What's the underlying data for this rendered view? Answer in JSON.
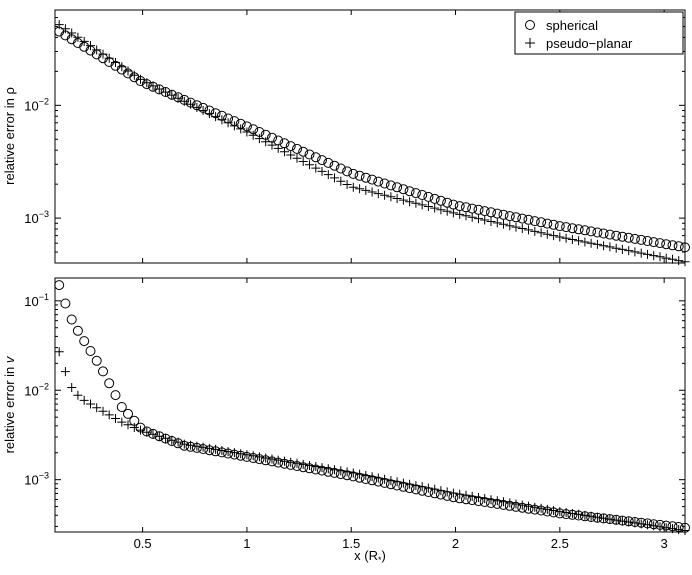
{
  "chart_data": [
    {
      "type": "scatter",
      "ylabel": "relative error in ρ",
      "yscale": "log",
      "xlim": [
        0.08,
        3.1
      ],
      "ylim": [
        0.0004,
        0.07
      ],
      "yticks": [
        {
          "value": 0.01,
          "base": "10",
          "exp": "−2"
        },
        {
          "value": 0.001,
          "base": "10",
          "exp": "−3"
        }
      ],
      "legend": {
        "position": "top-right",
        "entries": [
          "spherical",
          "pseudo−planar"
        ]
      },
      "series": [
        {
          "name": "spherical",
          "marker": "circle",
          "x": [
            0.1,
            0.5,
            1.0,
            1.5,
            2.0,
            2.5,
            3.1
          ],
          "y": [
            0.045,
            0.016,
            0.0065,
            0.0025,
            0.0013,
            0.00085,
            0.00055
          ]
        },
        {
          "name": "pseudo−planar",
          "marker": "plus",
          "x": [
            0.1,
            0.5,
            1.0,
            1.5,
            2.0,
            2.5,
            3.1
          ],
          "y": [
            0.052,
            0.0165,
            0.0058,
            0.0019,
            0.0011,
            0.00068,
            0.00041
          ]
        }
      ]
    },
    {
      "type": "scatter",
      "ylabel": "relative error in",
      "ylabel_symbol": "v",
      "yscale": "log",
      "xlabel": "x (R",
      "xlabel_sub": "*",
      "xlabel_end": ")",
      "xlim": [
        0.08,
        3.1
      ],
      "ylim": [
        0.00026,
        0.18
      ],
      "xticks": [
        {
          "value": 0.5,
          "label": "0.5"
        },
        {
          "value": 1.0,
          "label": "1"
        },
        {
          "value": 1.5,
          "label": "1.5"
        },
        {
          "value": 2.0,
          "label": "2"
        },
        {
          "value": 2.5,
          "label": "2.5"
        },
        {
          "value": 3.0,
          "label": "3"
        }
      ],
      "yticks": [
        {
          "value": 0.1,
          "base": "10",
          "exp": "−1"
        },
        {
          "value": 0.01,
          "base": "10",
          "exp": "−2"
        },
        {
          "value": 0.001,
          "base": "10",
          "exp": "−3"
        }
      ],
      "series": [
        {
          "name": "spherical",
          "marker": "circle",
          "x": [
            0.1,
            0.15,
            0.2,
            0.3,
            0.4,
            0.5,
            0.7,
            1.0,
            1.5,
            2.0,
            2.5,
            3.1
          ],
          "y": [
            0.15,
            0.068,
            0.042,
            0.018,
            0.0065,
            0.0036,
            0.0024,
            0.0018,
            0.0011,
            0.00063,
            0.00042,
            0.00029
          ]
        },
        {
          "name": "pseudo−planar",
          "marker": "plus",
          "x": [
            0.1,
            0.15,
            0.2,
            0.3,
            0.4,
            0.5,
            0.7,
            1.0,
            1.5,
            2.0,
            2.5,
            3.1
          ],
          "y": [
            0.027,
            0.0115,
            0.0082,
            0.006,
            0.0044,
            0.0035,
            0.0025,
            0.0019,
            0.0012,
            0.0007,
            0.00044,
            0.00027
          ]
        }
      ]
    }
  ]
}
